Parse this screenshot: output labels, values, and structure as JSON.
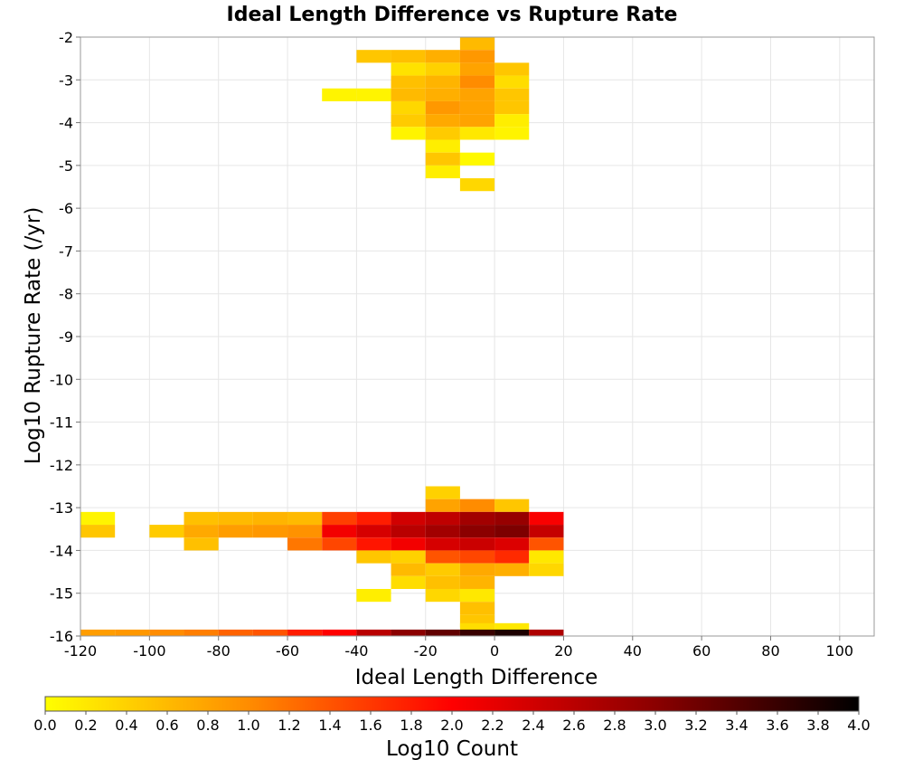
{
  "chart_data": {
    "type": "heatmap",
    "title": "Ideal Length Difference vs Rupture Rate",
    "xlabel": "Ideal Length Difference",
    "ylabel": "Log10 Rupture Rate (/yr)",
    "xlim": [
      -120,
      110
    ],
    "ylim": [
      -16,
      -2
    ],
    "x_ticks": [
      -120,
      -100,
      -80,
      -60,
      -40,
      -20,
      0,
      20,
      40,
      60,
      80,
      100
    ],
    "y_ticks": [
      -2,
      -3,
      -4,
      -5,
      -6,
      -7,
      -8,
      -9,
      -10,
      -11,
      -12,
      -13,
      -14,
      -15,
      -16
    ],
    "grid": true,
    "x_bin_width": 10,
    "y_bin_height": 0.3,
    "colorbar": {
      "label": "Log10 Count",
      "min": 0.0,
      "max": 4.0,
      "ticks": [
        "0.0",
        "0.2",
        "0.4",
        "0.6",
        "0.8",
        "1.0",
        "1.2",
        "1.4",
        "1.6",
        "1.8",
        "2.0",
        "2.2",
        "2.4",
        "2.6",
        "2.8",
        "3.0",
        "3.2",
        "3.4",
        "3.6",
        "3.8",
        "4.0"
      ],
      "colors": [
        "#ffff00",
        "#ff8c00",
        "#ff0000",
        "#8b0000",
        "#000000"
      ],
      "placement": "bottom"
    },
    "cells": [
      {
        "x": -10,
        "y": -2.15,
        "v": 0.6
      },
      {
        "x": -40,
        "y": -2.45,
        "v": 0.5
      },
      {
        "x": -30,
        "y": -2.45,
        "v": 0.55
      },
      {
        "x": -20,
        "y": -2.45,
        "v": 0.7
      },
      {
        "x": -10,
        "y": -2.45,
        "v": 0.9
      },
      {
        "x": -30,
        "y": -2.75,
        "v": 0.25
      },
      {
        "x": -20,
        "y": -2.75,
        "v": 0.4
      },
      {
        "x": -10,
        "y": -2.75,
        "v": 0.8
      },
      {
        "x": 0,
        "y": -2.75,
        "v": 0.5
      },
      {
        "x": -30,
        "y": -3.05,
        "v": 0.55
      },
      {
        "x": -20,
        "y": -3.05,
        "v": 0.65
      },
      {
        "x": -10,
        "y": -3.05,
        "v": 1.0
      },
      {
        "x": 0,
        "y": -3.05,
        "v": 0.3
      },
      {
        "x": -50,
        "y": -3.35,
        "v": 0.1
      },
      {
        "x": -40,
        "y": -3.35,
        "v": 0.1
      },
      {
        "x": -30,
        "y": -3.35,
        "v": 0.6
      },
      {
        "x": -20,
        "y": -3.35,
        "v": 0.7
      },
      {
        "x": -10,
        "y": -3.35,
        "v": 0.8
      },
      {
        "x": 0,
        "y": -3.35,
        "v": 0.5
      },
      {
        "x": -30,
        "y": -3.65,
        "v": 0.35
      },
      {
        "x": -20,
        "y": -3.65,
        "v": 0.9
      },
      {
        "x": -10,
        "y": -3.65,
        "v": 0.8
      },
      {
        "x": 0,
        "y": -3.65,
        "v": 0.5
      },
      {
        "x": -30,
        "y": -3.95,
        "v": 0.45
      },
      {
        "x": -20,
        "y": -3.95,
        "v": 0.75
      },
      {
        "x": -10,
        "y": -3.95,
        "v": 0.8
      },
      {
        "x": 0,
        "y": -3.95,
        "v": 0.15
      },
      {
        "x": -30,
        "y": -4.25,
        "v": 0.1
      },
      {
        "x": -20,
        "y": -4.25,
        "v": 0.45
      },
      {
        "x": -10,
        "y": -4.25,
        "v": 0.2
      },
      {
        "x": 0,
        "y": -4.25,
        "v": 0.1
      },
      {
        "x": -20,
        "y": -4.55,
        "v": 0.15
      },
      {
        "x": -20,
        "y": -4.85,
        "v": 0.5
      },
      {
        "x": -10,
        "y": -4.85,
        "v": 0.05
      },
      {
        "x": -20,
        "y": -5.15,
        "v": 0.15
      },
      {
        "x": -10,
        "y": -5.45,
        "v": 0.35
      },
      {
        "x": -20,
        "y": -12.65,
        "v": 0.4
      },
      {
        "x": -20,
        "y": -12.95,
        "v": 0.8
      },
      {
        "x": -10,
        "y": -12.95,
        "v": 1.0
      },
      {
        "x": 0,
        "y": -12.95,
        "v": 0.5
      },
      {
        "x": -120,
        "y": -13.25,
        "v": 0.1
      },
      {
        "x": -90,
        "y": -13.25,
        "v": 0.55
      },
      {
        "x": -80,
        "y": -13.25,
        "v": 0.6
      },
      {
        "x": -70,
        "y": -13.25,
        "v": 0.65
      },
      {
        "x": -60,
        "y": -13.25,
        "v": 0.6
      },
      {
        "x": -50,
        "y": -13.25,
        "v": 1.55
      },
      {
        "x": -40,
        "y": -13.25,
        "v": 1.8
      },
      {
        "x": -30,
        "y": -13.25,
        "v": 2.4
      },
      {
        "x": -20,
        "y": -13.25,
        "v": 2.55
      },
      {
        "x": -10,
        "y": -13.25,
        "v": 2.8
      },
      {
        "x": 0,
        "y": -13.25,
        "v": 2.9
      },
      {
        "x": 10,
        "y": -13.25,
        "v": 2.05
      },
      {
        "x": -120,
        "y": -13.55,
        "v": 0.5
      },
      {
        "x": -100,
        "y": -13.55,
        "v": 0.45
      },
      {
        "x": -90,
        "y": -13.55,
        "v": 0.75
      },
      {
        "x": -80,
        "y": -13.55,
        "v": 0.85
      },
      {
        "x": -70,
        "y": -13.55,
        "v": 0.9
      },
      {
        "x": -60,
        "y": -13.55,
        "v": 0.95
      },
      {
        "x": -50,
        "y": -13.55,
        "v": 2.1
      },
      {
        "x": -40,
        "y": -13.55,
        "v": 2.35
      },
      {
        "x": -30,
        "y": -13.55,
        "v": 2.6
      },
      {
        "x": -20,
        "y": -13.55,
        "v": 2.8
      },
      {
        "x": -10,
        "y": -13.55,
        "v": 3.0
      },
      {
        "x": 0,
        "y": -13.55,
        "v": 3.1
      },
      {
        "x": 10,
        "y": -13.55,
        "v": 2.5
      },
      {
        "x": -90,
        "y": -13.85,
        "v": 0.55
      },
      {
        "x": -60,
        "y": -13.85,
        "v": 1.15
      },
      {
        "x": -50,
        "y": -13.85,
        "v": 1.5
      },
      {
        "x": -40,
        "y": -13.85,
        "v": 1.85
      },
      {
        "x": -30,
        "y": -13.85,
        "v": 2.1
      },
      {
        "x": -20,
        "y": -13.85,
        "v": 2.35
      },
      {
        "x": -10,
        "y": -13.85,
        "v": 2.45
      },
      {
        "x": 0,
        "y": -13.85,
        "v": 2.3
      },
      {
        "x": 10,
        "y": -13.85,
        "v": 1.4
      },
      {
        "x": -40,
        "y": -14.15,
        "v": 0.5
      },
      {
        "x": -30,
        "y": -14.15,
        "v": 0.4
      },
      {
        "x": -20,
        "y": -14.15,
        "v": 1.4
      },
      {
        "x": -10,
        "y": -14.15,
        "v": 1.5
      },
      {
        "x": 0,
        "y": -14.15,
        "v": 1.7
      },
      {
        "x": 10,
        "y": -14.15,
        "v": 0.2
      },
      {
        "x": -30,
        "y": -14.45,
        "v": 0.6
      },
      {
        "x": -20,
        "y": -14.45,
        "v": 0.45
      },
      {
        "x": -10,
        "y": -14.45,
        "v": 0.75
      },
      {
        "x": 0,
        "y": -14.45,
        "v": 0.7
      },
      {
        "x": 10,
        "y": -14.45,
        "v": 0.35
      },
      {
        "x": -30,
        "y": -14.75,
        "v": 0.3
      },
      {
        "x": -20,
        "y": -14.75,
        "v": 0.55
      },
      {
        "x": -10,
        "y": -14.75,
        "v": 0.65
      },
      {
        "x": -40,
        "y": -15.05,
        "v": 0.15
      },
      {
        "x": -20,
        "y": -15.05,
        "v": 0.35
      },
      {
        "x": -10,
        "y": -15.05,
        "v": 0.2
      },
      {
        "x": -10,
        "y": -15.35,
        "v": 0.55
      },
      {
        "x": -10,
        "y": -15.65,
        "v": 0.5
      },
      {
        "x": -10,
        "y": -15.85,
        "v": 0.3
      },
      {
        "x": 0,
        "y": -15.85,
        "v": 0.2
      },
      {
        "x": -120,
        "y": -16.0,
        "v": 0.85
      },
      {
        "x": -110,
        "y": -16.0,
        "v": 0.9
      },
      {
        "x": -100,
        "y": -16.0,
        "v": 1.0
      },
      {
        "x": -90,
        "y": -16.0,
        "v": 1.1
      },
      {
        "x": -80,
        "y": -16.0,
        "v": 1.3
      },
      {
        "x": -70,
        "y": -16.0,
        "v": 1.4
      },
      {
        "x": -60,
        "y": -16.0,
        "v": 1.8
      },
      {
        "x": -50,
        "y": -16.0,
        "v": 2.0
      },
      {
        "x": -40,
        "y": -16.0,
        "v": 2.6
      },
      {
        "x": -30,
        "y": -16.0,
        "v": 3.0
      },
      {
        "x": -20,
        "y": -16.0,
        "v": 3.3
      },
      {
        "x": -10,
        "y": -16.0,
        "v": 3.6
      },
      {
        "x": 0,
        "y": -16.0,
        "v": 3.8
      },
      {
        "x": 10,
        "y": -16.0,
        "v": 2.7
      }
    ]
  }
}
